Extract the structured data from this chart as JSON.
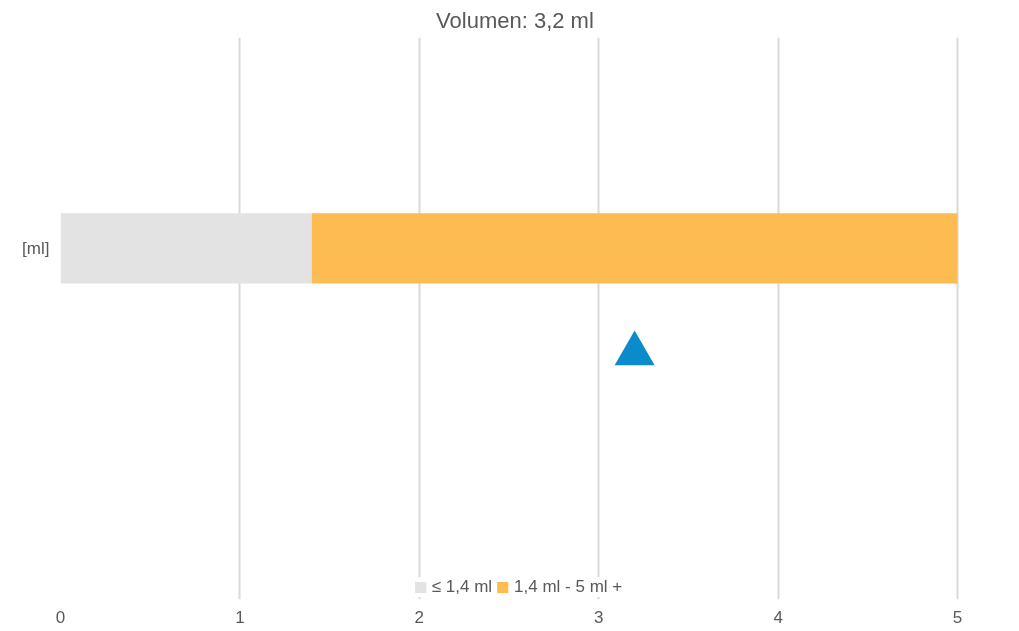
{
  "chart_data": {
    "type": "bar",
    "orientation": "horizontal",
    "stacked": true,
    "title": "Volumen:  3,2 ml",
    "categories": [
      "[ml]"
    ],
    "series": [
      {
        "name": "≤ 1,4 ml",
        "color": "#e3e3e3",
        "values": [
          1.4
        ]
      },
      {
        "name": "1,4 ml - 5 ml +",
        "color": "#fcbc52",
        "values": [
          3.6
        ]
      },
      {
        "type": "scatter",
        "marker": "triangle",
        "color": "#0a8ccc",
        "values": [
          3.2
        ]
      }
    ],
    "xlim": [
      0,
      5
    ],
    "xticks": [
      0,
      1,
      2,
      3,
      4,
      5
    ],
    "grid": "x",
    "legend": "bottom"
  }
}
